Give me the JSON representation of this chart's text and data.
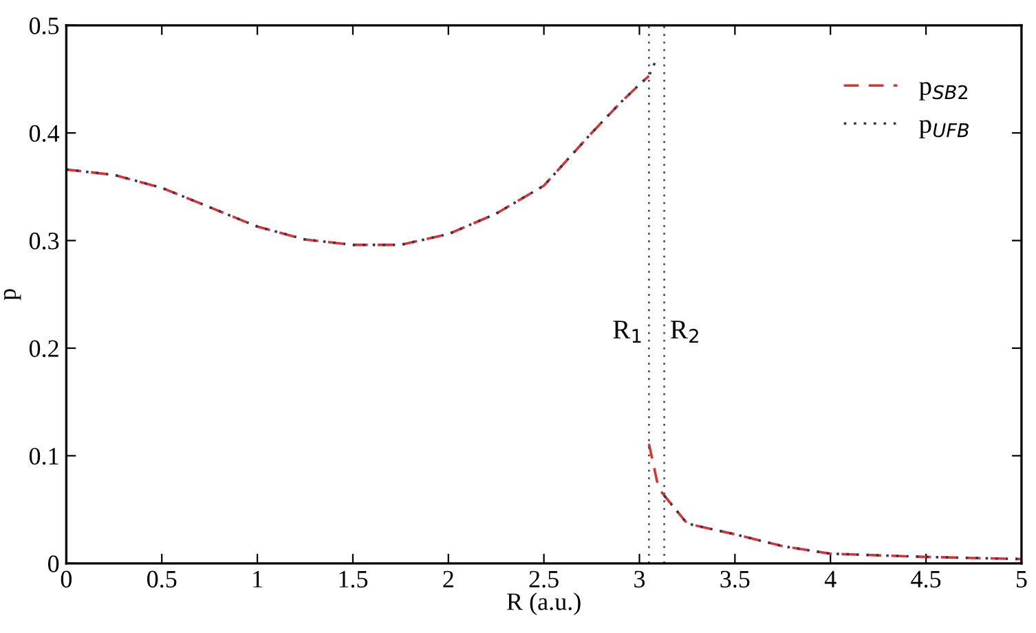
{
  "chart_data": {
    "type": "line",
    "xlabel": "R (a.u.)",
    "ylabel": "p",
    "xlim": [
      0,
      5
    ],
    "xticks": [
      0,
      0.5,
      1,
      1.5,
      2,
      2.5,
      3,
      3.5,
      4,
      4.5,
      5
    ],
    "ylim": [
      0,
      0.5
    ],
    "yticks": [
      0,
      0.1,
      0.2,
      0.3,
      0.4,
      0.5
    ],
    "series": [
      {
        "name": "p$_{SB2}$",
        "color": "#e03030",
        "line_style": "dashed",
        "x": [
          0,
          0.25,
          0.5,
          0.75,
          1,
          1.25,
          1.5,
          1.75,
          2,
          2.25,
          2.5,
          2.75,
          2.9,
          3.0,
          3.05,
          null,
          3.05,
          3.1,
          3.13,
          3.25,
          3.5,
          3.75,
          4,
          4.5,
          5
        ],
        "values": [
          0.366,
          0.361,
          0.349,
          0.331,
          0.313,
          0.301,
          0.296,
          0.296,
          0.306,
          0.325,
          0.351,
          0.4,
          0.428,
          0.445,
          0.453,
          null,
          0.111,
          0.07,
          0.063,
          0.037,
          0.027,
          0.016,
          0.009,
          0.006,
          0.004
        ]
      },
      {
        "name": "p$_{UFB}$",
        "color": "#333355",
        "line_style": "dotted",
        "x": [
          0,
          0.25,
          0.5,
          0.75,
          1,
          1.25,
          1.5,
          1.75,
          2,
          2.25,
          2.5,
          2.75,
          2.9,
          3.0,
          3.05,
          3.09,
          null,
          3.13,
          3.25,
          3.5,
          3.75,
          4,
          4.5,
          5
        ],
        "values": [
          0.366,
          0.361,
          0.349,
          0.331,
          0.313,
          0.301,
          0.296,
          0.296,
          0.306,
          0.325,
          0.351,
          0.4,
          0.428,
          0.445,
          0.453,
          0.469,
          null,
          0.063,
          0.037,
          0.027,
          0.016,
          0.009,
          0.006,
          0.004
        ]
      }
    ],
    "ref_lines": [
      {
        "axis": "x",
        "value": 3.05,
        "label": "R$_{1}$",
        "color": "#555555",
        "line_style": "dotted"
      },
      {
        "axis": "x",
        "value": 3.13,
        "label": "R$_{2}$",
        "color": "#555555",
        "line_style": "dotted"
      }
    ],
    "legend": "top right",
    "grid": false
  }
}
